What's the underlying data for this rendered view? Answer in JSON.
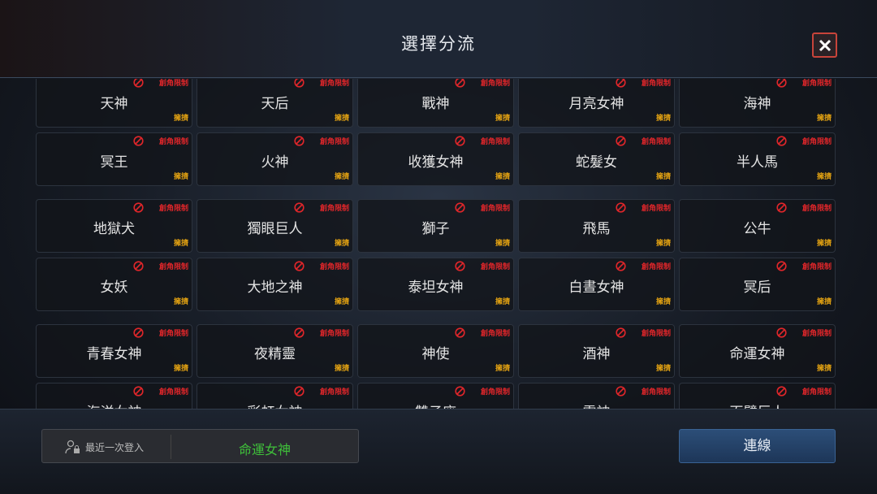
{
  "header": {
    "title": "選擇分流"
  },
  "tag_restricted": "創角限制",
  "tag_busy": "擁擠",
  "servers": [
    "天神",
    "天后",
    "戰神",
    "月亮女神",
    "海神",
    "冥王",
    "火神",
    "收獲女神",
    "蛇髮女",
    "半人馬",
    "地獄犬",
    "獨眼巨人",
    "獅子",
    "飛馬",
    "公牛",
    "女妖",
    "大地之神",
    "泰坦女神",
    "白晝女神",
    "冥后",
    "青春女神",
    "夜精靈",
    "神使",
    "酒神",
    "命運女神",
    "海洋女神",
    "彩虹女神",
    "雙子座",
    "雷神",
    "百臂巨人"
  ],
  "footer": {
    "last_login_label": "最近一次登入",
    "last_login_value": "命運女神",
    "connect_label": "連線"
  },
  "colors": {
    "restricted": "#e0262a",
    "busy": "#e0a012",
    "last_login": "#3fbf3a",
    "connect": "#2c4e78"
  }
}
